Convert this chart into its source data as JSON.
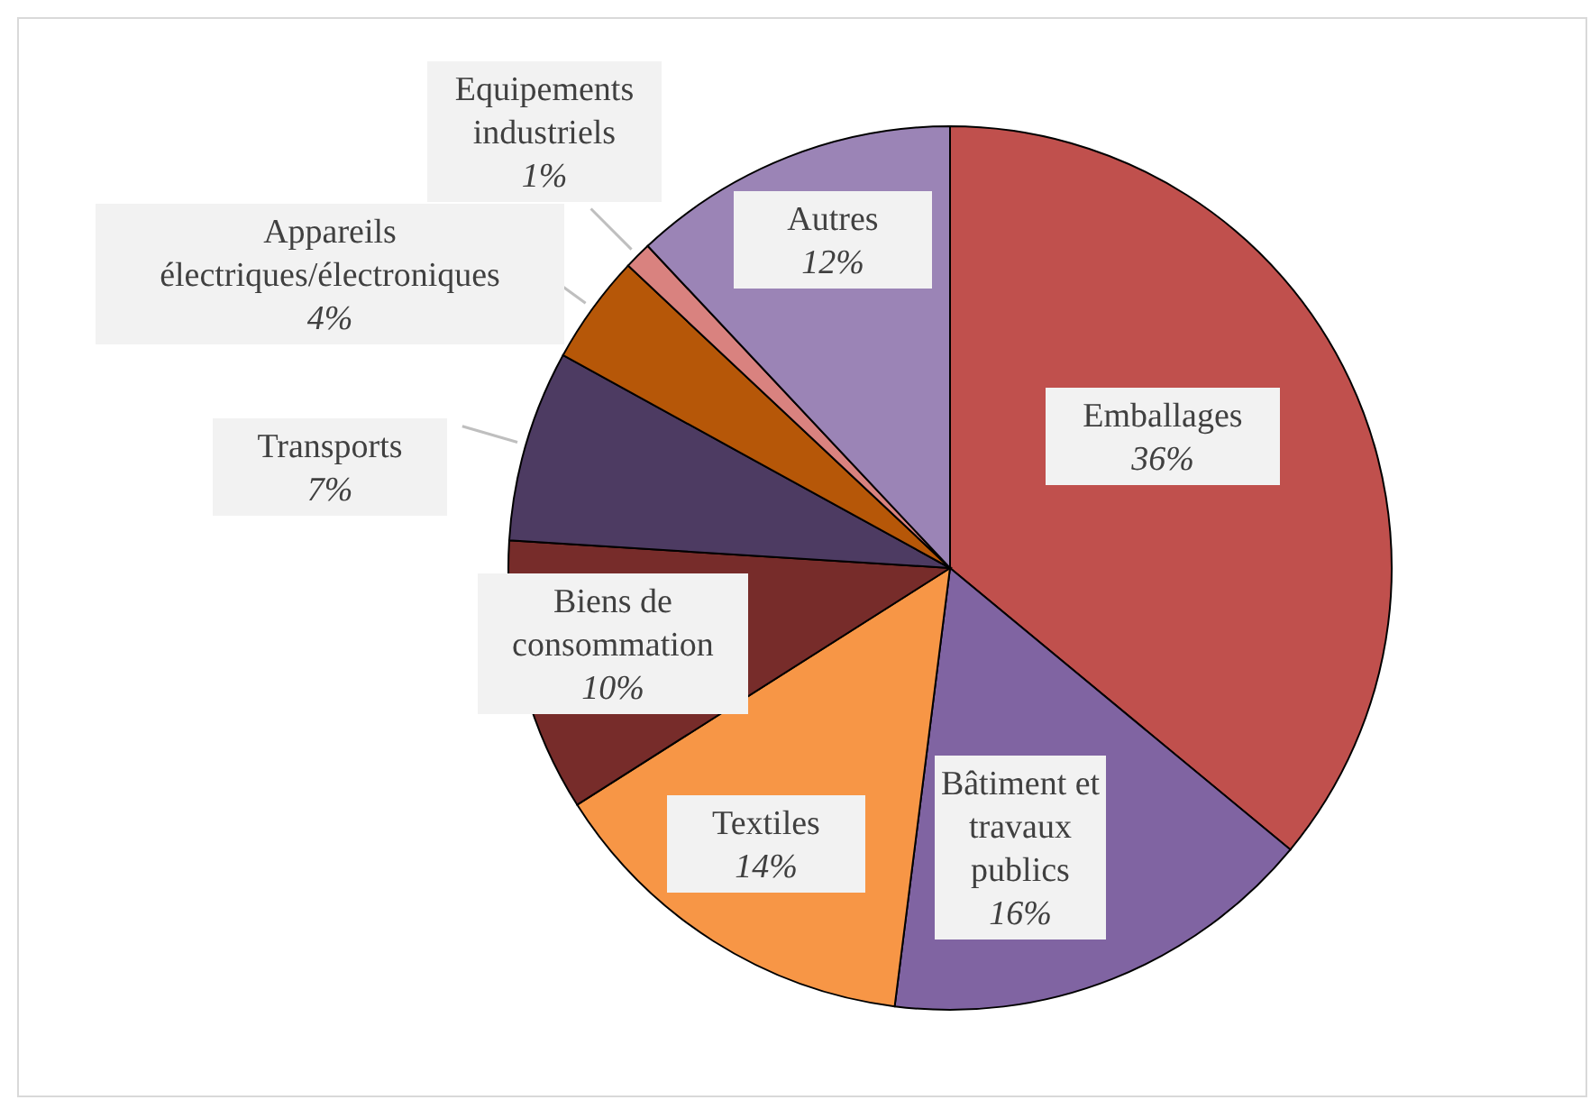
{
  "chart_data": {
    "type": "pie",
    "categories": [
      "Emballages",
      "Bâtiment et travaux publics",
      "Textiles",
      "Biens de consommation",
      "Transports",
      "Appareils électriques/électroniques",
      "Equipements industriels",
      "Autres"
    ],
    "values": [
      36,
      16,
      14,
      10,
      7,
      4,
      1,
      12
    ],
    "colors": [
      "#c0504d",
      "#8064a2",
      "#f79646",
      "#772c2a",
      "#4d3b62",
      "#b65708",
      "#d9827f",
      "#9b84b6"
    ],
    "value_labels": [
      "36%",
      "16%",
      "14%",
      "10%",
      "7%",
      "4%",
      "1%",
      "12%"
    ]
  }
}
